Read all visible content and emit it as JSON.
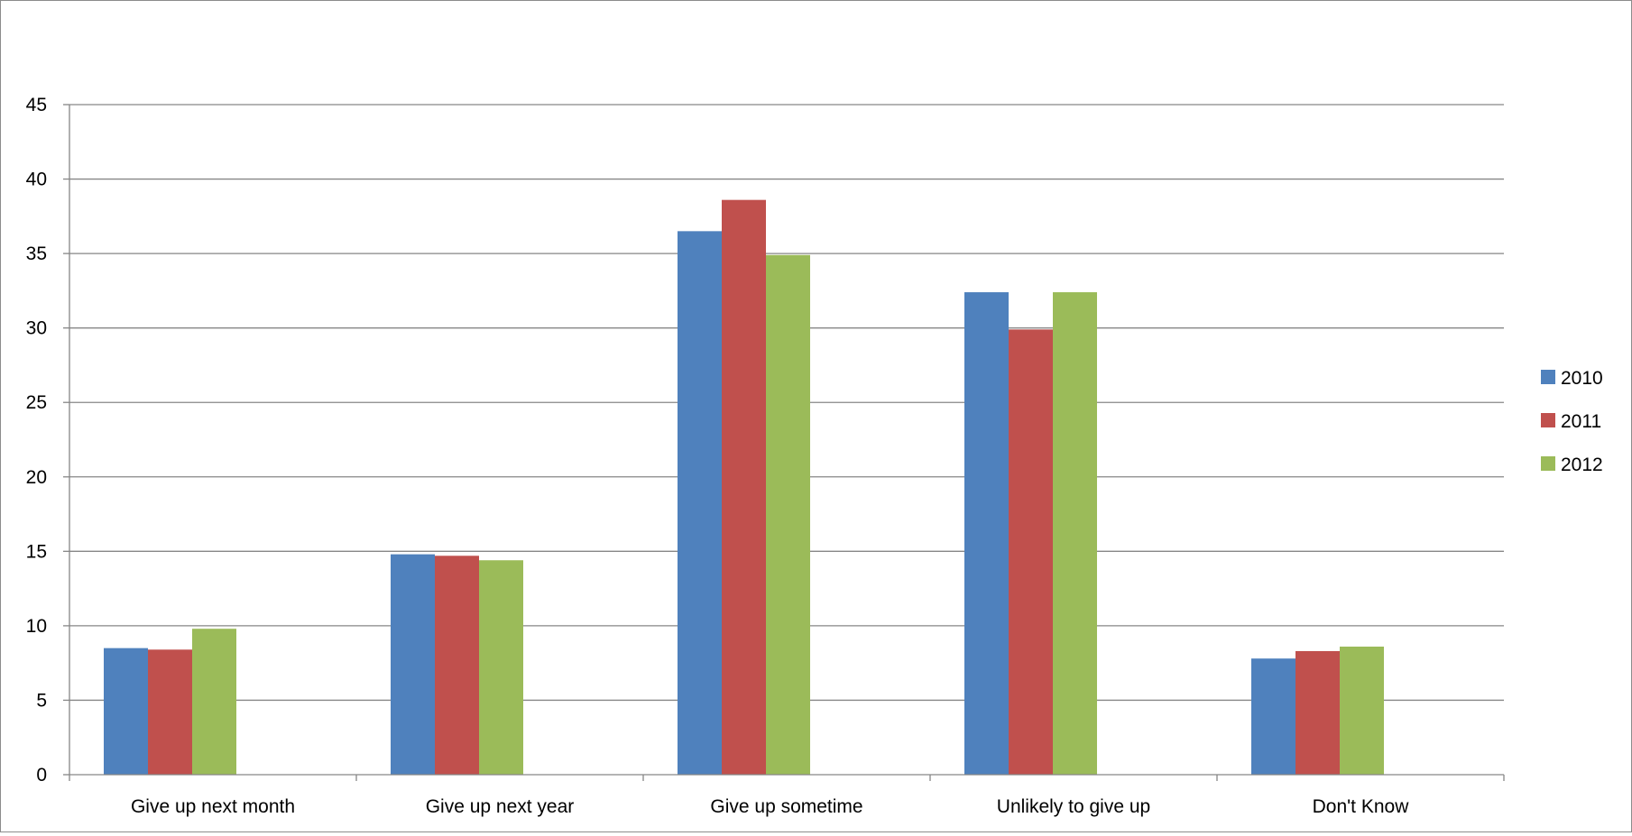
{
  "chart_data": {
    "type": "bar",
    "categories": [
      "Give up next month",
      "Give up next year",
      "Give up sometime",
      "Unlikely to give up",
      "Don't Know"
    ],
    "series": [
      {
        "name": "2010",
        "color": "#4F81BD",
        "values": [
          8.5,
          14.8,
          36.5,
          32.4,
          7.8
        ]
      },
      {
        "name": "2011",
        "color": "#C0504D",
        "values": [
          8.4,
          14.7,
          38.6,
          29.9,
          8.3
        ]
      },
      {
        "name": "2012",
        "color": "#9BBB59",
        "values": [
          9.8,
          14.4,
          34.9,
          32.4,
          8.6
        ]
      }
    ],
    "y_ticks": [
      "0",
      "5",
      "10",
      "15",
      "20",
      "25",
      "30",
      "35",
      "40",
      "45"
    ],
    "ylim": [
      0,
      45
    ],
    "grid": true,
    "legend_position": "right",
    "gridline_color": "#868686"
  }
}
